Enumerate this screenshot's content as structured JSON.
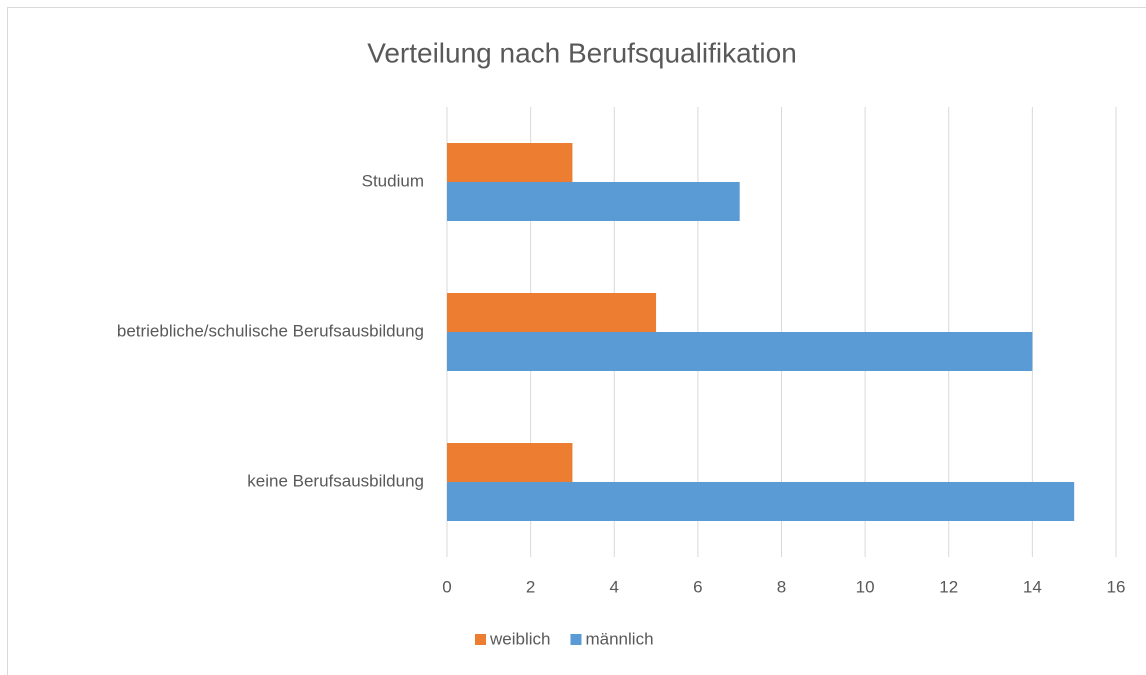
{
  "chart_data": {
    "type": "hbar",
    "title": "Verteilung nach Berufsqualifikation",
    "categories": [
      "Studium",
      "betriebliche/schulische Berufsausbildung",
      "keine Berufsausbildung"
    ],
    "series": [
      {
        "name": "weiblich",
        "color": "#ed7d31",
        "values": [
          3,
          5,
          3
        ]
      },
      {
        "name": "männlich",
        "color": "#5b9bd5",
        "values": [
          7,
          14,
          15
        ]
      }
    ],
    "xlim": [
      0,
      16
    ],
    "xticks": [
      0,
      2,
      4,
      6,
      8,
      10,
      12,
      14,
      16
    ],
    "grid": true,
    "legend": "bottom"
  }
}
